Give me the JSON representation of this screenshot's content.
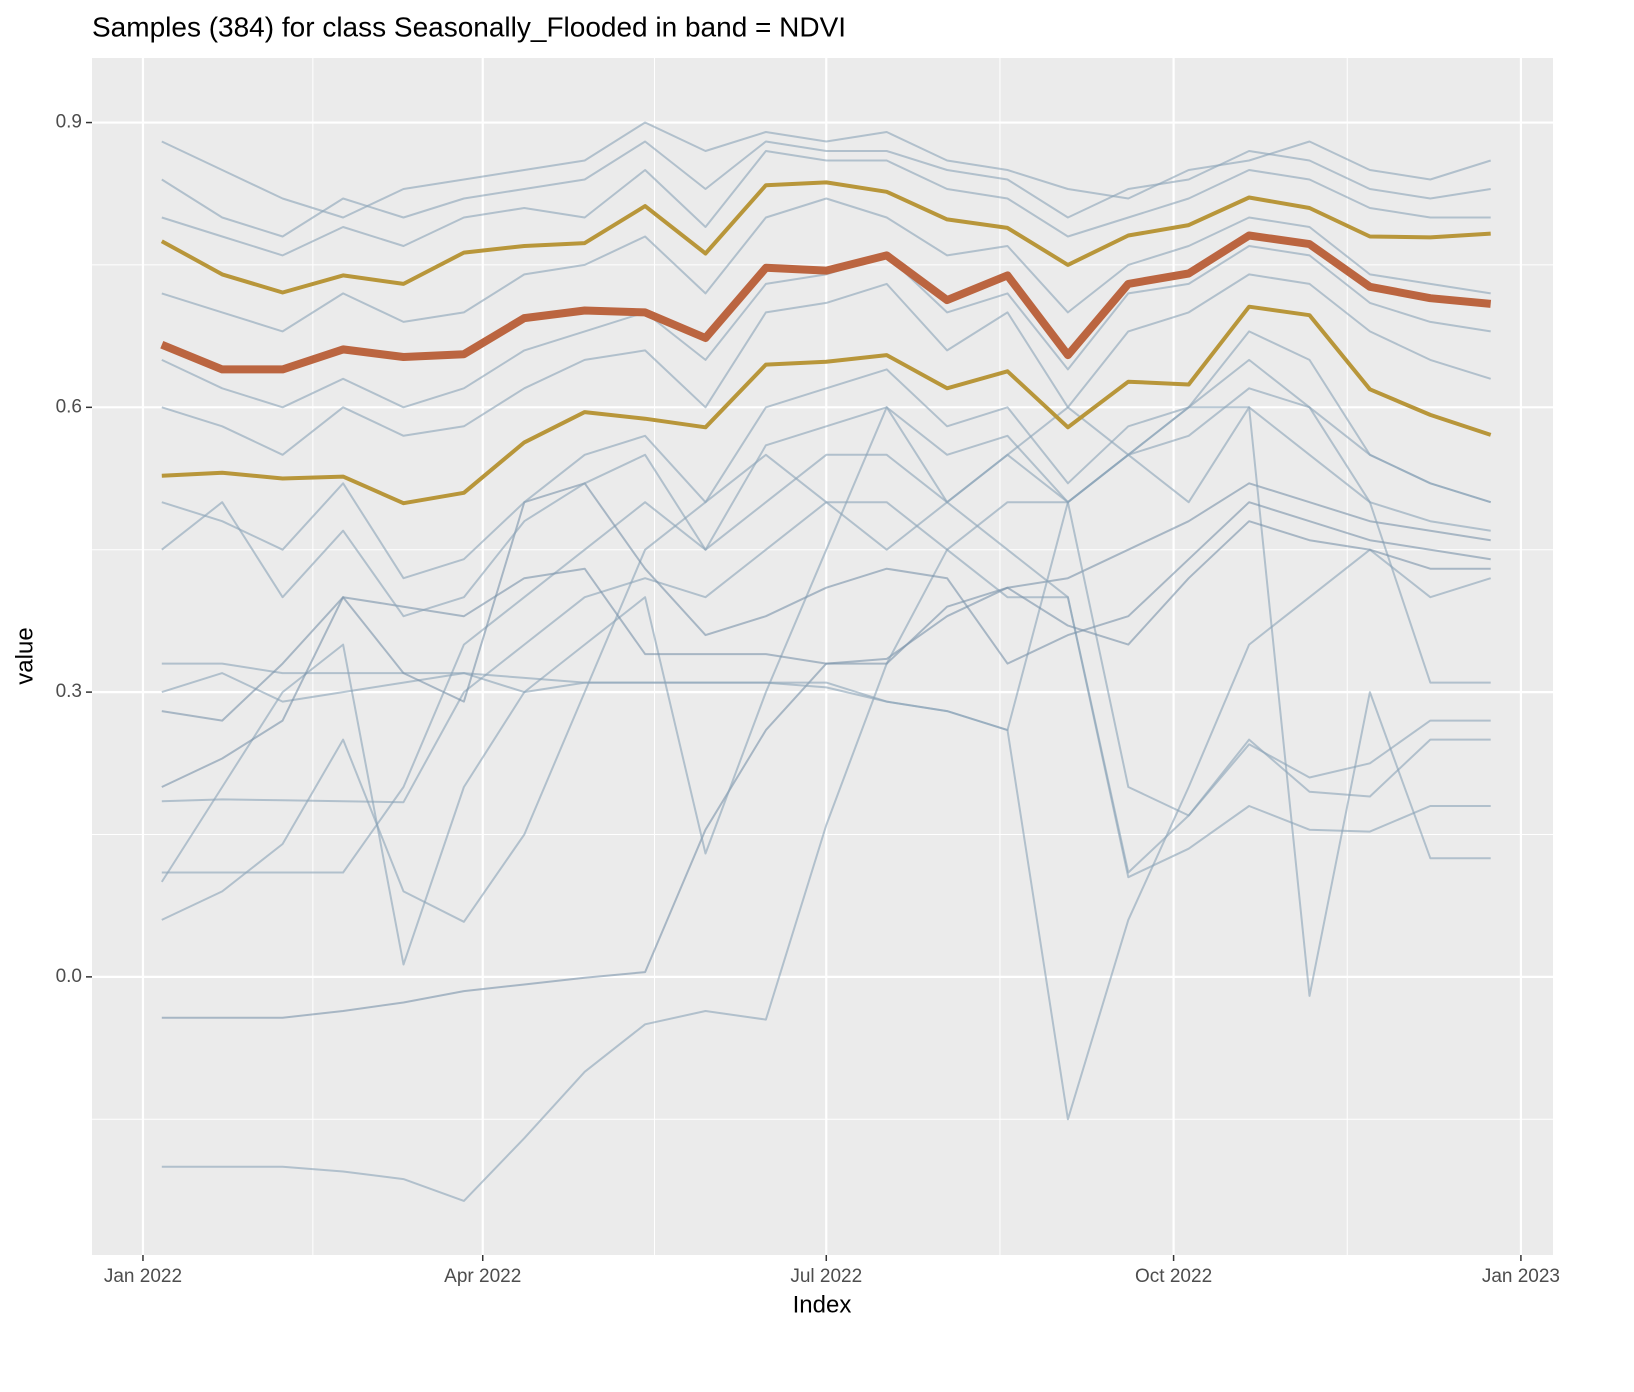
{
  "chart_data": {
    "type": "line",
    "title": "Samples (384) for class Seasonally_Flooded in band = NDVI",
    "xlabel": "Index",
    "ylabel": "value",
    "x": [
      5,
      21,
      37,
      53,
      69,
      85,
      101,
      117,
      133,
      149,
      165,
      181,
      197,
      213,
      229,
      245,
      261,
      277,
      293,
      309,
      325,
      341,
      357
    ],
    "xlim": [
      -13.5,
      373.5
    ],
    "xticks": [
      {
        "value": 0,
        "label": "Jan 2022"
      },
      {
        "value": 90,
        "label": "Apr 2022"
      },
      {
        "value": 181,
        "label": "Jul 2022"
      },
      {
        "value": 273,
        "label": "Oct 2022"
      },
      {
        "value": 365,
        "label": "Jan 2023"
      }
    ],
    "ylim": [
      -0.293,
      0.968
    ],
    "yticks": [
      {
        "value": 0,
        "label": "0.0"
      },
      0.3,
      0.6,
      0.9
    ],
    "grid": true,
    "series": [
      {
        "color": "#7a93aa",
        "linewidth": 2,
        "values": [
          -0.043,
          -0.043,
          -0.043,
          -0.036,
          -0.027,
          -0.015,
          -0.008,
          -0.001,
          0.005,
          0.155,
          0.26,
          0.33,
          0.335,
          0.38,
          0.41,
          0.42,
          0.45,
          0.48,
          0.52,
          0.5,
          0.48,
          0.47,
          0.46
        ]
      },
      {
        "color": "#8aa3b8",
        "linewidth": 2,
        "values": [
          -0.2,
          -0.2,
          -0.2,
          -0.205,
          -0.213,
          -0.236,
          -0.17,
          -0.1,
          -0.05,
          -0.036,
          -0.045,
          0.16,
          0.33,
          0.45,
          0.5,
          0.5,
          0.55,
          0.6,
          0.65,
          0.6,
          0.55,
          0.52,
          0.5
        ]
      },
      {
        "color": "#8aa3b8",
        "linewidth": 2,
        "values": [
          0.3,
          0.32,
          0.29,
          0.3,
          0.31,
          0.32,
          0.3,
          0.31,
          0.31,
          0.31,
          0.31,
          0.31,
          0.29,
          0.28,
          0.26,
          -0.15,
          0.06,
          0.2,
          0.35,
          0.4,
          0.45,
          0.4,
          0.42
        ]
      },
      {
        "color": "#8aa3b8",
        "linewidth": 2,
        "values": [
          0.11,
          0.11,
          0.11,
          0.11,
          0.2,
          0.35,
          0.4,
          0.45,
          0.5,
          0.45,
          0.5,
          0.55,
          0.55,
          0.5,
          0.45,
          0.4,
          0.11,
          0.17,
          0.245,
          0.21,
          0.225,
          0.27,
          0.27
        ]
      },
      {
        "color": "#8aa3b8",
        "linewidth": 2,
        "values": [
          0.185,
          0.187,
          0.186,
          0.185,
          0.184,
          0.3,
          0.35,
          0.4,
          0.42,
          0.4,
          0.45,
          0.5,
          0.5,
          0.45,
          0.4,
          0.4,
          0.105,
          0.135,
          0.18,
          0.155,
          0.153,
          0.18,
          0.18
        ]
      },
      {
        "color": "#8aa3b8",
        "linewidth": 2,
        "values": [
          0.06,
          0.09,
          0.14,
          0.25,
          0.09,
          0.058,
          0.15,
          0.3,
          0.45,
          0.5,
          0.55,
          0.5,
          0.45,
          0.5,
          0.55,
          0.5,
          0.2,
          0.17,
          0.25,
          0.195,
          0.19,
          0.25,
          0.25
        ]
      },
      {
        "color": "#8aa3b8",
        "linewidth": 2,
        "values": [
          0.1,
          0.2,
          0.3,
          0.35,
          0.013,
          0.2,
          0.3,
          0.35,
          0.4,
          0.13,
          0.3,
          0.45,
          0.6,
          0.5,
          0.55,
          0.6,
          0.55,
          0.5,
          0.6,
          -0.02,
          0.3,
          0.125,
          0.125
        ]
      },
      {
        "color": "#8aa3b8",
        "linewidth": 2,
        "values": [
          0.33,
          0.33,
          0.32,
          0.32,
          0.32,
          0.32,
          0.315,
          0.31,
          0.31,
          0.31,
          0.31,
          0.305,
          0.29,
          0.28,
          0.26,
          0.5,
          0.55,
          0.6,
          0.6,
          0.55,
          0.5,
          0.31,
          0.31
        ]
      },
      {
        "color": "#7a93aa",
        "linewidth": 2,
        "values": [
          0.2,
          0.23,
          0.27,
          0.4,
          0.39,
          0.38,
          0.42,
          0.43,
          0.34,
          0.34,
          0.34,
          0.33,
          0.33,
          0.39,
          0.41,
          0.37,
          0.35,
          0.42,
          0.48,
          0.46,
          0.45,
          0.43,
          0.43
        ]
      },
      {
        "color": "#7a93aa",
        "linewidth": 2,
        "values": [
          0.28,
          0.27,
          0.33,
          0.4,
          0.32,
          0.29,
          0.5,
          0.52,
          0.43,
          0.36,
          0.38,
          0.41,
          0.43,
          0.42,
          0.33,
          0.36,
          0.38,
          0.44,
          0.5,
          0.48,
          0.46,
          0.45,
          0.44
        ]
      },
      {
        "color": "#8aa3b8",
        "linewidth": 2,
        "values": [
          0.88,
          0.85,
          0.82,
          0.8,
          0.83,
          0.84,
          0.85,
          0.86,
          0.9,
          0.87,
          0.89,
          0.88,
          0.89,
          0.86,
          0.85,
          0.83,
          0.82,
          0.85,
          0.86,
          0.88,
          0.85,
          0.84,
          0.86
        ]
      },
      {
        "color": "#8aa3b8",
        "linewidth": 2,
        "values": [
          0.72,
          0.7,
          0.68,
          0.72,
          0.69,
          0.7,
          0.74,
          0.75,
          0.78,
          0.72,
          0.8,
          0.82,
          0.8,
          0.76,
          0.77,
          0.7,
          0.75,
          0.77,
          0.8,
          0.79,
          0.74,
          0.73,
          0.72
        ]
      },
      {
        "color": "#8aa3b8",
        "linewidth": 2,
        "values": [
          0.6,
          0.58,
          0.55,
          0.6,
          0.57,
          0.58,
          0.62,
          0.65,
          0.66,
          0.6,
          0.7,
          0.71,
          0.73,
          0.66,
          0.7,
          0.6,
          0.68,
          0.7,
          0.74,
          0.73,
          0.68,
          0.65,
          0.63
        ]
      },
      {
        "color": "#8aa3b8",
        "linewidth": 2,
        "values": [
          0.5,
          0.48,
          0.45,
          0.52,
          0.42,
          0.44,
          0.5,
          0.55,
          0.57,
          0.5,
          0.6,
          0.62,
          0.64,
          0.58,
          0.6,
          0.52,
          0.58,
          0.6,
          0.68,
          0.65,
          0.55,
          0.52,
          0.5
        ]
      },
      {
        "color": "#8aa3b8",
        "linewidth": 2,
        "values": [
          0.8,
          0.78,
          0.76,
          0.79,
          0.77,
          0.8,
          0.81,
          0.8,
          0.85,
          0.79,
          0.87,
          0.86,
          0.86,
          0.83,
          0.82,
          0.78,
          0.8,
          0.82,
          0.85,
          0.84,
          0.81,
          0.8,
          0.8
        ]
      },
      {
        "color": "#8aa3b8",
        "linewidth": 2,
        "values": [
          0.65,
          0.62,
          0.6,
          0.63,
          0.6,
          0.62,
          0.66,
          0.68,
          0.7,
          0.65,
          0.73,
          0.74,
          0.76,
          0.7,
          0.72,
          0.64,
          0.72,
          0.73,
          0.77,
          0.76,
          0.71,
          0.69,
          0.68
        ]
      },
      {
        "color": "#8aa3b8",
        "linewidth": 2,
        "values": [
          0.45,
          0.5,
          0.4,
          0.47,
          0.38,
          0.4,
          0.48,
          0.52,
          0.55,
          0.45,
          0.56,
          0.58,
          0.6,
          0.55,
          0.57,
          0.5,
          0.55,
          0.57,
          0.62,
          0.6,
          0.5,
          0.48,
          0.47
        ]
      },
      {
        "color": "#8aa3b8",
        "linewidth": 2,
        "values": [
          0.84,
          0.8,
          0.78,
          0.82,
          0.8,
          0.82,
          0.83,
          0.84,
          0.88,
          0.83,
          0.88,
          0.87,
          0.87,
          0.85,
          0.84,
          0.8,
          0.83,
          0.84,
          0.87,
          0.86,
          0.83,
          0.82,
          0.83
        ]
      },
      {
        "color": "#b8963a",
        "linewidth": 4,
        "values": [
          0.775,
          0.74,
          0.721,
          0.739,
          0.73,
          0.763,
          0.77,
          0.773,
          0.812,
          0.762,
          0.834,
          0.837,
          0.827,
          0.798,
          0.789,
          0.75,
          0.781,
          0.792,
          0.821,
          0.81,
          0.78,
          0.779,
          0.783
        ]
      },
      {
        "color": "#b8963a",
        "linewidth": 4,
        "values": [
          0.528,
          0.531,
          0.525,
          0.527,
          0.499,
          0.51,
          0.563,
          0.595,
          0.588,
          0.579,
          0.645,
          0.648,
          0.655,
          0.62,
          0.638,
          0.579,
          0.627,
          0.624,
          0.706,
          0.697,
          0.619,
          0.592,
          0.571
        ]
      },
      {
        "color": "#bb6540",
        "linewidth": 8,
        "values": [
          0.666,
          0.64,
          0.64,
          0.661,
          0.653,
          0.656,
          0.694,
          0.702,
          0.7,
          0.673,
          0.747,
          0.744,
          0.76,
          0.713,
          0.739,
          0.655,
          0.73,
          0.741,
          0.781,
          0.772,
          0.727,
          0.715,
          0.709
        ]
      }
    ]
  }
}
